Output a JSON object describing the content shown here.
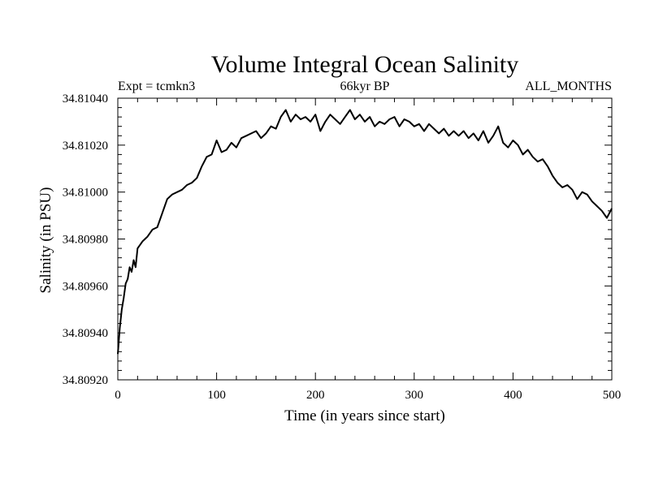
{
  "chart_data": {
    "type": "line",
    "title": "Volume Integral Ocean Salinity",
    "subtitle_left": "Expt = tcmkn3",
    "subtitle_center": "66kyr BP",
    "subtitle_right": "ALL_MONTHS",
    "xlabel": "Time (in years since start)",
    "ylabel": "Salinity (in PSU)",
    "xlim": [
      0,
      500
    ],
    "ylim": [
      34.8092,
      34.8104
    ],
    "x_ticks": [
      0,
      100,
      200,
      300,
      400,
      500
    ],
    "x_tick_labels": [
      "0",
      "100",
      "200",
      "300",
      "400",
      "500"
    ],
    "y_ticks": [
      34.8092,
      34.8094,
      34.8096,
      34.8098,
      34.81,
      34.8102,
      34.8104
    ],
    "y_tick_labels": [
      "34.80920",
      "34.80940",
      "34.80960",
      "34.80980",
      "34.81000",
      "34.81020",
      "34.81040"
    ],
    "grid": false,
    "series": [
      {
        "color": "#000000",
        "x": [
          0,
          2,
          4,
          6,
          8,
          10,
          12,
          14,
          16,
          18,
          20,
          25,
          30,
          35,
          40,
          45,
          50,
          55,
          60,
          65,
          70,
          75,
          80,
          85,
          90,
          95,
          100,
          105,
          110,
          115,
          120,
          125,
          130,
          135,
          140,
          145,
          150,
          155,
          160,
          165,
          170,
          175,
          180,
          185,
          190,
          195,
          200,
          205,
          210,
          215,
          220,
          225,
          230,
          235,
          240,
          245,
          250,
          255,
          260,
          265,
          270,
          275,
          280,
          285,
          290,
          295,
          300,
          305,
          310,
          315,
          320,
          325,
          330,
          335,
          340,
          345,
          350,
          355,
          360,
          365,
          370,
          375,
          380,
          385,
          390,
          395,
          400,
          405,
          410,
          415,
          420,
          425,
          430,
          435,
          440,
          445,
          450,
          455,
          460,
          465,
          470,
          475,
          480,
          485,
          490,
          495,
          500
        ],
        "y": [
          34.80931,
          34.80942,
          34.8095,
          34.80955,
          34.80961,
          34.80963,
          34.80968,
          34.80966,
          34.80971,
          34.80968,
          34.80976,
          34.80979,
          34.80981,
          34.80984,
          34.80985,
          34.80991,
          34.80997,
          34.80999,
          34.81,
          34.81001,
          34.81003,
          34.81004,
          34.81006,
          34.81011,
          34.81015,
          34.81016,
          34.81022,
          34.81017,
          34.81018,
          34.81021,
          34.81019,
          34.81023,
          34.81024,
          34.81025,
          34.81026,
          34.81023,
          34.81025,
          34.81028,
          34.81027,
          34.81032,
          34.81035,
          34.8103,
          34.81033,
          34.81031,
          34.81032,
          34.8103,
          34.81033,
          34.81026,
          34.8103,
          34.81033,
          34.81031,
          34.81029,
          34.81032,
          34.81035,
          34.81031,
          34.81033,
          34.8103,
          34.81032,
          34.81028,
          34.8103,
          34.81029,
          34.81031,
          34.81032,
          34.81028,
          34.81031,
          34.8103,
          34.81028,
          34.81029,
          34.81026,
          34.81029,
          34.81027,
          34.81025,
          34.81027,
          34.81024,
          34.81026,
          34.81024,
          34.81026,
          34.81023,
          34.81025,
          34.81022,
          34.81026,
          34.81021,
          34.81024,
          34.81028,
          34.81021,
          34.81019,
          34.81022,
          34.8102,
          34.81016,
          34.81018,
          34.81015,
          34.81013,
          34.81014,
          34.81011,
          34.81007,
          34.81004,
          34.81002,
          34.81003,
          34.81001,
          34.80997,
          34.81,
          34.80999,
          34.80996,
          34.80994,
          34.80992,
          34.80989,
          34.80993
        ]
      }
    ]
  }
}
